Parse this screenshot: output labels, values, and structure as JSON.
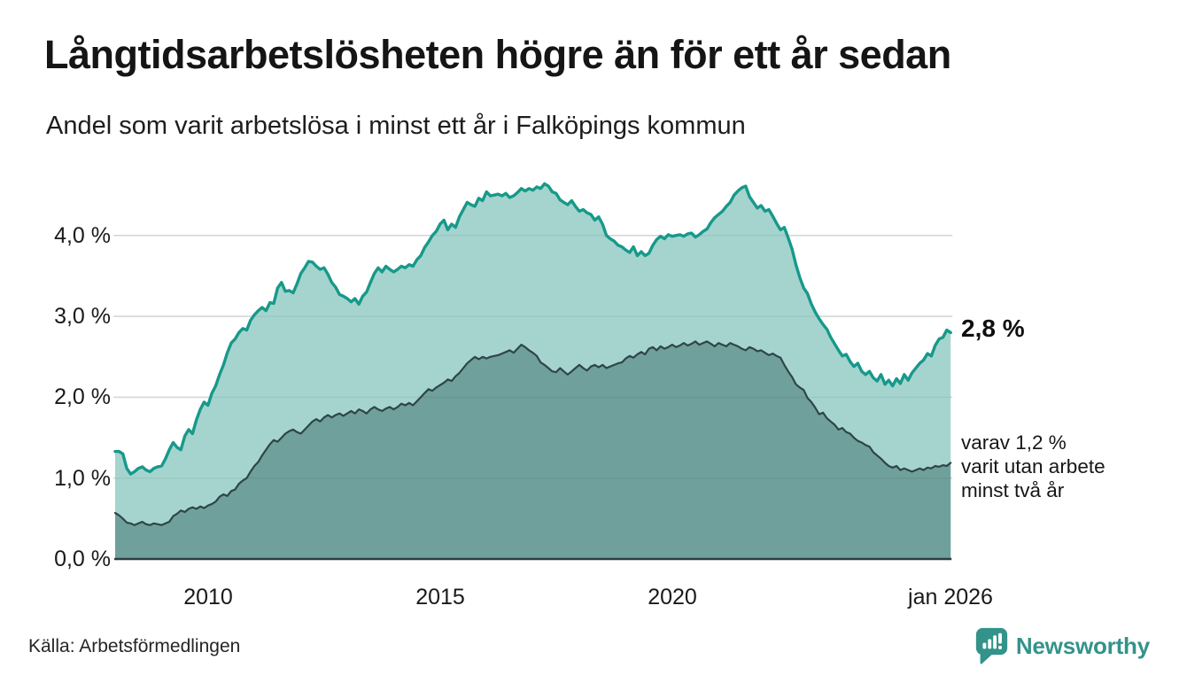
{
  "header": {
    "title": "Långtidsarbetslösheten högre än för ett år sedan",
    "subtitle": "Andel som varit arbetslösa i minst ett år i Falköpings kommun"
  },
  "annotations": {
    "latest_value": "2,8 %",
    "secondary_line1": "varav 1,2 %",
    "secondary_line2": "varit utan arbete",
    "secondary_line3": "minst två år"
  },
  "footer": {
    "source": "Källa: Arbetsförmedlingen",
    "brand": "Newsworthy"
  },
  "colors": {
    "series1_line": "#17998a",
    "series1_fill": "#a5d4ce",
    "series2_line": "#2e4549",
    "series2_fill": "#70a09b",
    "gridline": "#e3e3e3",
    "axis_baseline": "#2b3c40",
    "brand_teal": "#33938a"
  },
  "chart_data": {
    "type": "area",
    "title": "Långtidsarbetslösheten högre än för ett år sedan",
    "subtitle": "Andel som varit arbetslösa i minst ett år i Falköpings kommun",
    "unit": "%",
    "resolution": "monthly",
    "x_start_year": 2008.0,
    "x_end_year": 2026.0,
    "xlim": [
      2008.0,
      2026.08
    ],
    "ylim": [
      0,
      4.75
    ],
    "grid": true,
    "legend_position": "none",
    "y_ticks_pct": [
      4,
      3,
      2,
      1,
      0
    ],
    "y_tick_labels": [
      "4,0 %",
      "3,0 %",
      "2,0 %",
      "1,0 %",
      "0,0 %"
    ],
    "x_tick_years": [
      2010,
      2015,
      2020,
      2026.0
    ],
    "x_tick_labels": [
      "2010",
      "2015",
      "2020",
      "jan 2026"
    ],
    "annotations": [
      {
        "text": "2,8 %",
        "attached_to": "series1_end",
        "value_pct": 2.8
      },
      {
        "text": "varav 1,2 % varit utan arbete minst två år",
        "attached_to": "series2_end",
        "value_pct": 1.2
      }
    ],
    "series": [
      {
        "name": "Andel som varit arbetslösa i minst ett år",
        "line_color": "#17998a",
        "fill_color": "#a5d4ce",
        "end_value_label": "2,8 %",
        "values_pct": [
          1.33,
          1.33,
          1.3,
          1.12,
          1.05,
          1.08,
          1.12,
          1.14,
          1.1,
          1.08,
          1.12,
          1.14,
          1.15,
          1.24,
          1.35,
          1.44,
          1.38,
          1.35,
          1.52,
          1.6,
          1.55,
          1.72,
          1.85,
          1.94,
          1.9,
          2.05,
          2.14,
          2.28,
          2.4,
          2.55,
          2.67,
          2.72,
          2.8,
          2.85,
          2.83,
          2.95,
          3.02,
          3.07,
          3.11,
          3.07,
          3.17,
          3.16,
          3.35,
          3.42,
          3.31,
          3.32,
          3.29,
          3.4,
          3.53,
          3.6,
          3.68,
          3.67,
          3.62,
          3.58,
          3.6,
          3.52,
          3.42,
          3.36,
          3.27,
          3.25,
          3.22,
          3.18,
          3.22,
          3.15,
          3.25,
          3.3,
          3.42,
          3.53,
          3.6,
          3.55,
          3.62,
          3.58,
          3.55,
          3.58,
          3.62,
          3.6,
          3.64,
          3.62,
          3.7,
          3.75,
          3.85,
          3.92,
          4.0,
          4.05,
          4.14,
          4.19,
          4.07,
          4.14,
          4.1,
          4.23,
          4.32,
          4.41,
          4.38,
          4.36,
          4.46,
          4.43,
          4.54,
          4.49,
          4.5,
          4.51,
          4.49,
          4.52,
          4.47,
          4.49,
          4.53,
          4.58,
          4.55,
          4.58,
          4.56,
          4.6,
          4.58,
          4.64,
          4.61,
          4.54,
          4.52,
          4.44,
          4.41,
          4.38,
          4.43,
          4.36,
          4.3,
          4.32,
          4.28,
          4.26,
          4.19,
          4.23,
          4.14,
          4.0,
          3.96,
          3.93,
          3.88,
          3.86,
          3.82,
          3.79,
          3.86,
          3.75,
          3.8,
          3.75,
          3.78,
          3.88,
          3.95,
          3.99,
          3.96,
          4.01,
          3.99,
          4.0,
          4.01,
          3.99,
          4.02,
          4.03,
          3.98,
          4.01,
          4.05,
          4.08,
          4.16,
          4.22,
          4.26,
          4.3,
          4.36,
          4.41,
          4.5,
          4.55,
          4.59,
          4.61,
          4.48,
          4.41,
          4.34,
          4.37,
          4.3,
          4.32,
          4.24,
          4.15,
          4.07,
          4.1,
          3.97,
          3.83,
          3.64,
          3.48,
          3.35,
          3.28,
          3.15,
          3.05,
          2.97,
          2.9,
          2.84,
          2.74,
          2.66,
          2.58,
          2.51,
          2.53,
          2.44,
          2.38,
          2.42,
          2.32,
          2.28,
          2.32,
          2.24,
          2.2,
          2.28,
          2.16,
          2.21,
          2.14,
          2.23,
          2.17,
          2.28,
          2.21,
          2.3,
          2.36,
          2.42,
          2.46,
          2.54,
          2.51,
          2.64,
          2.72,
          2.74,
          2.83,
          2.8
        ]
      },
      {
        "name": "varav varit utan arbete minst två år",
        "line_color": "#2e4549",
        "fill_color": "#70a09b",
        "end_value_label": "1,2 %",
        "values_pct": [
          0.57,
          0.54,
          0.5,
          0.45,
          0.44,
          0.42,
          0.44,
          0.46,
          0.43,
          0.42,
          0.44,
          0.43,
          0.42,
          0.44,
          0.46,
          0.53,
          0.56,
          0.6,
          0.58,
          0.62,
          0.64,
          0.62,
          0.65,
          0.63,
          0.66,
          0.68,
          0.71,
          0.77,
          0.8,
          0.78,
          0.84,
          0.86,
          0.93,
          0.97,
          1.0,
          1.08,
          1.15,
          1.2,
          1.28,
          1.35,
          1.42,
          1.47,
          1.45,
          1.5,
          1.55,
          1.58,
          1.6,
          1.57,
          1.55,
          1.6,
          1.65,
          1.7,
          1.73,
          1.7,
          1.75,
          1.78,
          1.75,
          1.78,
          1.8,
          1.77,
          1.8,
          1.83,
          1.8,
          1.85,
          1.83,
          1.8,
          1.85,
          1.88,
          1.85,
          1.83,
          1.86,
          1.88,
          1.85,
          1.88,
          1.92,
          1.9,
          1.93,
          1.9,
          1.95,
          2.0,
          2.05,
          2.1,
          2.08,
          2.12,
          2.15,
          2.18,
          2.22,
          2.2,
          2.26,
          2.3,
          2.36,
          2.42,
          2.46,
          2.5,
          2.47,
          2.5,
          2.48,
          2.5,
          2.51,
          2.52,
          2.54,
          2.56,
          2.58,
          2.55,
          2.6,
          2.65,
          2.62,
          2.58,
          2.55,
          2.51,
          2.43,
          2.4,
          2.36,
          2.32,
          2.31,
          2.36,
          2.32,
          2.28,
          2.32,
          2.36,
          2.4,
          2.36,
          2.33,
          2.38,
          2.4,
          2.37,
          2.4,
          2.36,
          2.38,
          2.4,
          2.42,
          2.43,
          2.48,
          2.51,
          2.49,
          2.53,
          2.56,
          2.53,
          2.6,
          2.62,
          2.58,
          2.63,
          2.6,
          2.62,
          2.65,
          2.62,
          2.64,
          2.67,
          2.64,
          2.66,
          2.69,
          2.65,
          2.67,
          2.69,
          2.66,
          2.63,
          2.67,
          2.65,
          2.63,
          2.67,
          2.65,
          2.63,
          2.6,
          2.58,
          2.62,
          2.6,
          2.57,
          2.58,
          2.55,
          2.52,
          2.54,
          2.51,
          2.49,
          2.4,
          2.32,
          2.25,
          2.16,
          2.12,
          2.09,
          1.99,
          1.94,
          1.87,
          1.79,
          1.81,
          1.74,
          1.7,
          1.66,
          1.6,
          1.62,
          1.57,
          1.55,
          1.5,
          1.46,
          1.44,
          1.41,
          1.39,
          1.32,
          1.28,
          1.24,
          1.19,
          1.15,
          1.13,
          1.15,
          1.1,
          1.12,
          1.1,
          1.08,
          1.1,
          1.12,
          1.1,
          1.13,
          1.12,
          1.15,
          1.14,
          1.16,
          1.15,
          1.19
        ]
      }
    ]
  }
}
